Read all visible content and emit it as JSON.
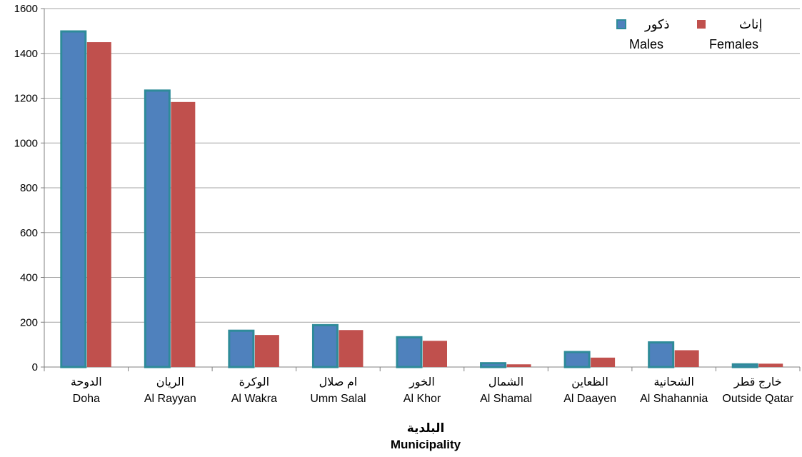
{
  "chart_data": {
    "type": "bar",
    "title": "",
    "xlabel_ar": "البلدية",
    "xlabel": "Municipality",
    "ylabel": "",
    "ylim": [
      0,
      1600
    ],
    "yticks": [
      0,
      200,
      400,
      600,
      800,
      1000,
      1200,
      1400,
      1600
    ],
    "grid": true,
    "legend_position": "top-right",
    "categories_ar": [
      "الدوحة",
      "الريان",
      "الوكرة",
      "ام صلال",
      "الخور",
      "الشمال",
      "الظعاين",
      "الشحانية",
      "خارج قطر"
    ],
    "categories": [
      "Doha",
      "Al Rayyan",
      "Al Wakra",
      "Umm Salal",
      "Al Khor",
      "Al Shamal",
      "Al Daayen",
      "Al Shahannia",
      "Outside Qatar"
    ],
    "series": [
      {
        "name": "Males",
        "name_ar": "ذكور",
        "color": "#4F81BD",
        "border_color": "#2E8B99",
        "values": [
          1498,
          1234,
          162,
          187,
          133,
          17,
          67,
          110,
          12
        ]
      },
      {
        "name": "Females",
        "name_ar": "إناث",
        "color": "#C0504D",
        "values": [
          1450,
          1183,
          143,
          165,
          117,
          12,
          42,
          75,
          15
        ]
      }
    ]
  }
}
